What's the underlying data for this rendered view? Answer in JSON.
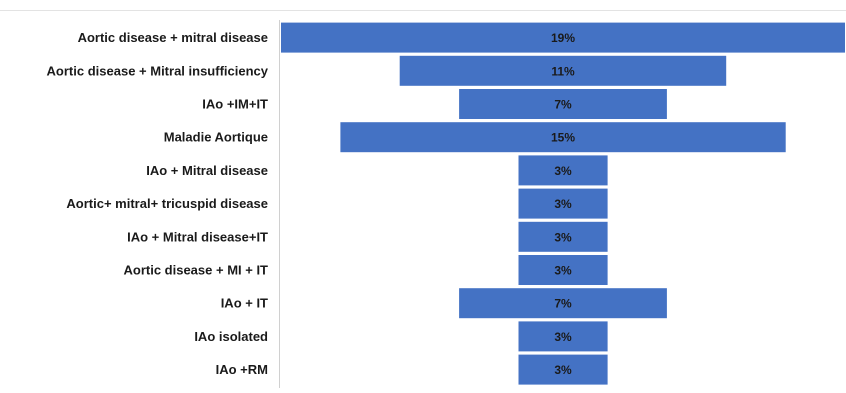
{
  "chart_data": {
    "type": "bar",
    "orientation": "horizontal-centered",
    "categories": [
      "Aortic disease + mitral disease",
      "Aortic disease + Mitral insufficiency",
      "IAo +IM+IT",
      "Maladie Aortique",
      "IAo + Mitral disease",
      "Aortic+ mitral+ tricuspid disease",
      "IAo + Mitral disease+IT",
      "Aortic disease + MI + IT",
      "IAo + IT",
      "IAo isolated",
      "IAo +RM"
    ],
    "values": [
      19,
      11,
      7,
      15,
      3,
      3,
      3,
      3,
      7,
      3,
      3
    ],
    "value_labels": [
      "19%",
      "11%",
      "7%",
      "15%",
      "3%",
      "3%",
      "3%",
      "3%",
      "7%",
      "3%",
      "3%"
    ],
    "unit": "%",
    "bar_color": "#4472c4",
    "grid": false,
    "legend": "none"
  }
}
